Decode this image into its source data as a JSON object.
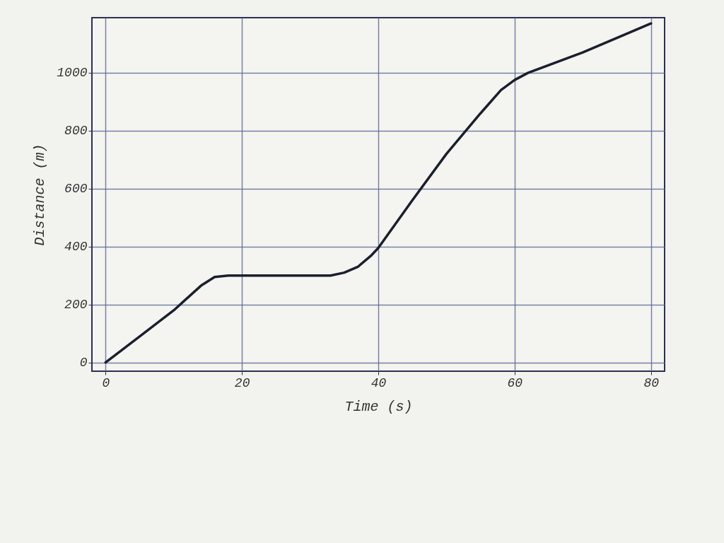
{
  "chart_data": {
    "type": "line",
    "xlabel": "Time (s)",
    "ylabel": "Distance (m)",
    "x": [
      0,
      5,
      10,
      14,
      16,
      18,
      33,
      35,
      37,
      39,
      40,
      45,
      50,
      55,
      58,
      60,
      62,
      70,
      80
    ],
    "series": [
      {
        "color": "#1a1f2e",
        "values": [
          0,
          90,
          180,
          265,
          295,
          300,
          300,
          310,
          330,
          370,
          395,
          560,
          720,
          860,
          940,
          975,
          1000,
          1070,
          1170
        ]
      }
    ],
    "xlim": [
      -2,
      82
    ],
    "xticks": [
      0,
      20,
      40,
      60,
      80
    ],
    "ylim": [
      -30,
      1190
    ],
    "yticks": [
      0,
      200,
      400,
      600,
      800,
      1000
    ],
    "grid": true,
    "marker": "none",
    "line_style": "solid"
  }
}
